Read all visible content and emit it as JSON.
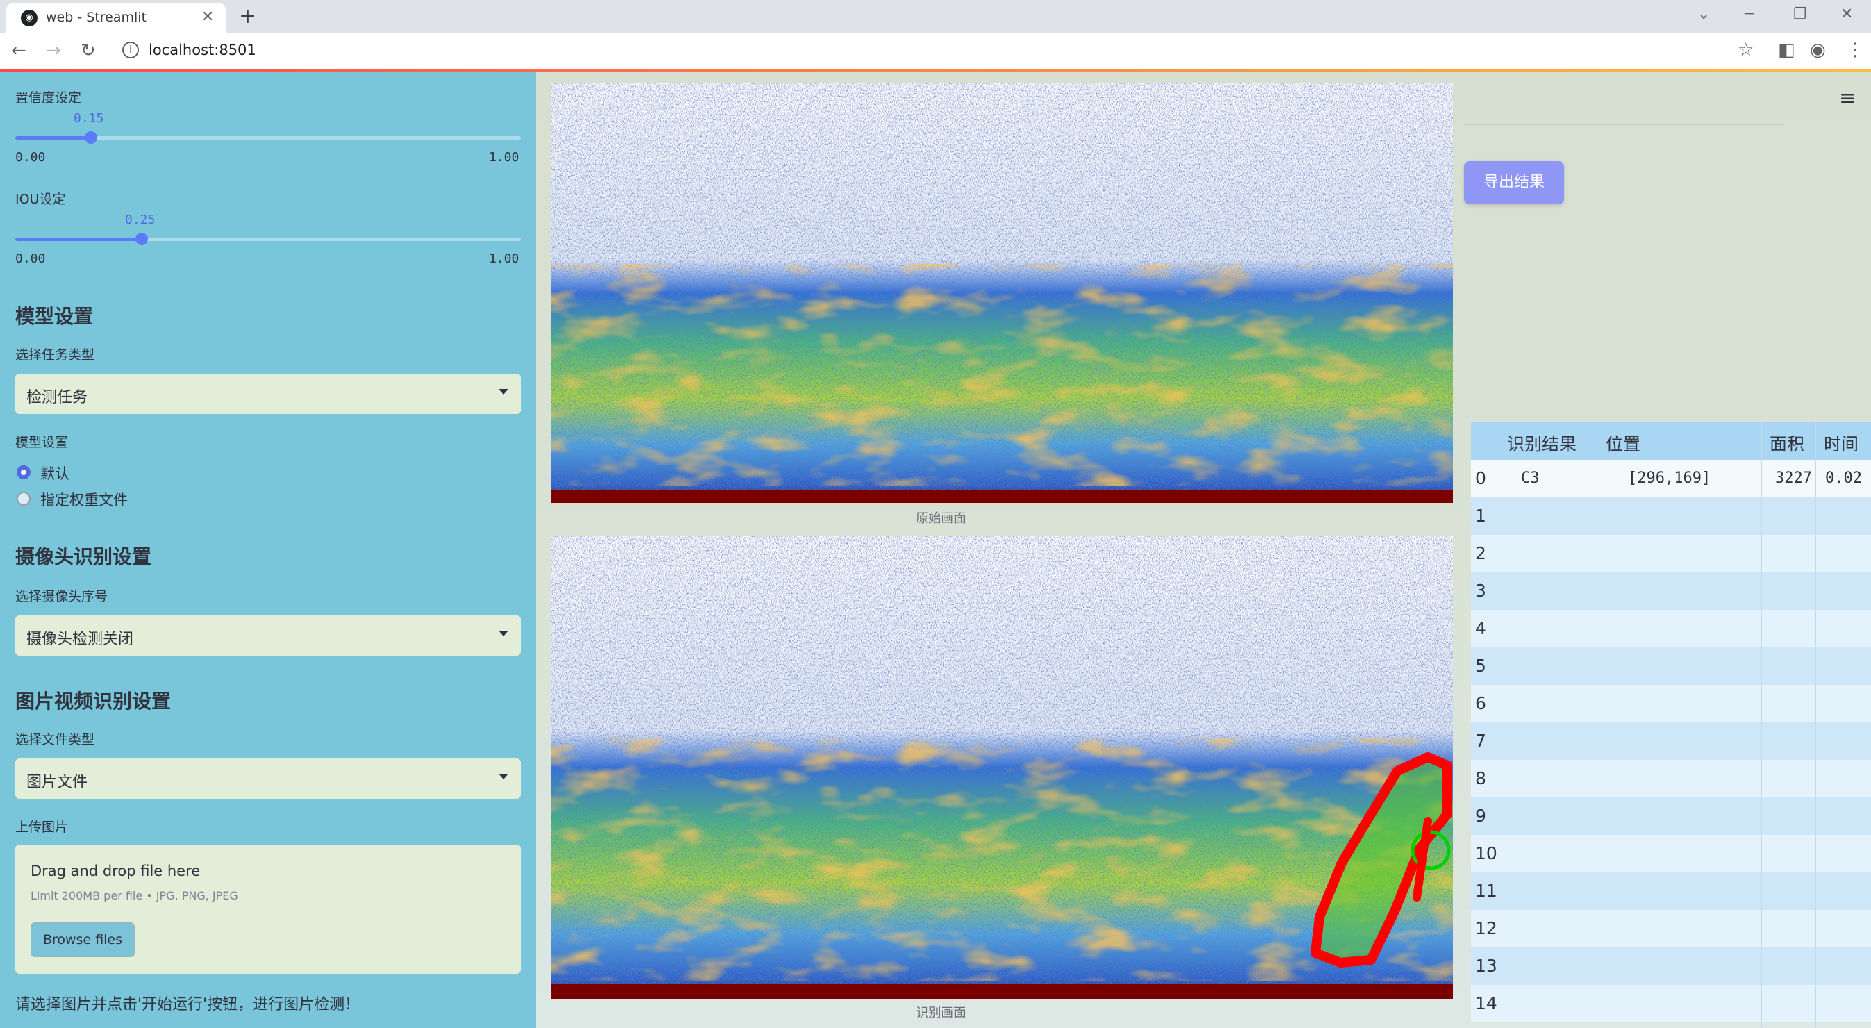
{
  "browser": {
    "tab_title": "web - Streamlit",
    "url": "localhost:8501"
  },
  "sidebar": {
    "conf_label": "置信度设定",
    "conf_value": "0.15",
    "conf_min": "0.00",
    "conf_max": "1.00",
    "conf_fraction": 0.15,
    "iou_label": "IOU设定",
    "iou_value": "0.25",
    "iou_min": "0.00",
    "iou_max": "1.00",
    "iou_fraction": 0.25,
    "model_heading": "模型设置",
    "task_label": "选择任务类型",
    "task_value": "检测任务",
    "model_label": "模型设置",
    "model_options": [
      "默认",
      "指定权重文件"
    ],
    "model_selected": "默认",
    "camera_heading": "摄像头识别设置",
    "camera_label": "选择摄像头序号",
    "camera_value": "摄像头检测关闭",
    "media_heading": "图片视频识别设置",
    "filetype_label": "选择文件类型",
    "filetype_value": "图片文件",
    "upload_label": "上传图片",
    "upload_title": "Drag and drop file here",
    "upload_limit": "Limit 200MB per file • JPG, PNG, JPEG",
    "browse_label": "Browse files",
    "hint": "请选择图片并点击'开始运行'按钮，进行图片检测！"
  },
  "main": {
    "original_caption": "原始画面",
    "result_caption": "识别画面",
    "export_label": "导出结果"
  },
  "table": {
    "headers": [
      "识别结果",
      "位置",
      "面积",
      "时间"
    ],
    "rows": [
      {
        "index": "0",
        "result": "C3",
        "position": "[296,169]",
        "area": "3227",
        "time": "0.02"
      },
      {
        "index": "1"
      },
      {
        "index": "2"
      },
      {
        "index": "3"
      },
      {
        "index": "4"
      },
      {
        "index": "5"
      },
      {
        "index": "6"
      },
      {
        "index": "7"
      },
      {
        "index": "8"
      },
      {
        "index": "9"
      },
      {
        "index": "10"
      },
      {
        "index": "11"
      },
      {
        "index": "12"
      },
      {
        "index": "13"
      },
      {
        "index": "14"
      }
    ]
  },
  "colors": {
    "sidebar_bg": "#79c5da",
    "accent": "#5b7cf6",
    "detection_outline": "#ff0000",
    "export_button": "#8e96f6"
  }
}
